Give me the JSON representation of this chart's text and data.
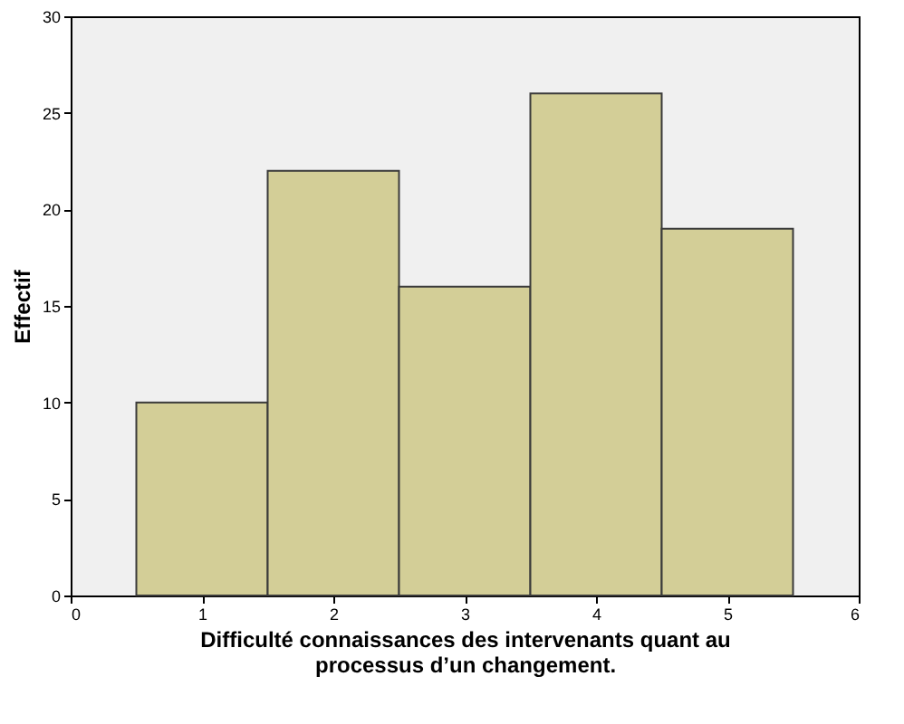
{
  "chart_data": {
    "type": "histogram",
    "xlabel": "Difficulté connaissances des intervenants quant au processus d’un changement.",
    "ylabel": "Effectif",
    "bins": [
      0.5,
      1.5,
      2.5,
      3.5,
      4.5,
      5.5
    ],
    "values": [
      10,
      22,
      16,
      26,
      19
    ],
    "color": "#d3ce97",
    "xlim": [
      0,
      6
    ],
    "xticks": [
      0,
      1,
      2,
      3,
      4,
      5,
      6
    ],
    "ylim": [
      0,
      30
    ],
    "yticks": [
      0,
      5,
      10,
      15,
      20,
      25,
      30
    ],
    "grid": false
  }
}
